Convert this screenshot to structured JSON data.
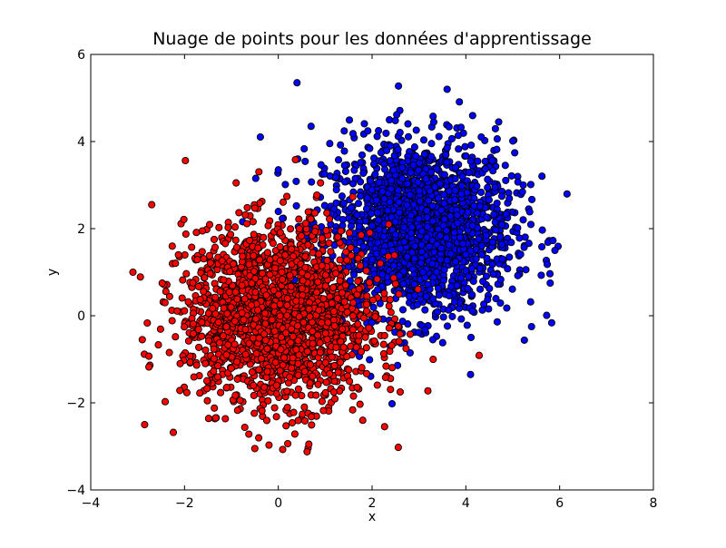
{
  "chart_data": {
    "type": "scatter",
    "title": "Nuage de points pour les données d'apprentissage",
    "xlabel": "x",
    "ylabel": "y",
    "xlim": [
      -4,
      8
    ],
    "ylim": [
      -4,
      6
    ],
    "x_ticks": [
      "−4",
      "−2",
      "0",
      "2",
      "4",
      "6",
      "8"
    ],
    "y_ticks": [
      "−4",
      "−2",
      "0",
      "2",
      "4",
      "6"
    ],
    "grid": false,
    "series": [
      {
        "color": "#ff0000",
        "distribution": {
          "mean": [
            0,
            0
          ],
          "std": [
            1,
            1
          ],
          "count": 2000
        },
        "outliers": [
          [
            -2.7,
            2.55
          ],
          [
            -3.1,
            1.0
          ],
          [
            -2.9,
            -0.55
          ],
          [
            -2.85,
            -2.5
          ],
          [
            -0.5,
            -3.05
          ],
          [
            0.65,
            -2.95
          ],
          [
            1.8,
            -2.4
          ],
          [
            0.9,
            3.05
          ],
          [
            -0.9,
            3.05
          ],
          [
            2.6,
            -1.75
          ]
        ]
      },
      {
        "color": "#0000ff",
        "distribution": {
          "mean": [
            3,
            2
          ],
          "std": [
            1,
            1
          ],
          "count": 2000
        },
        "outliers": [
          [
            0.4,
            5.35
          ],
          [
            3.6,
            5.2
          ],
          [
            4.7,
            4.45
          ],
          [
            5.9,
            1.5
          ],
          [
            5.8,
            0.75
          ],
          [
            5.4,
            -0.25
          ],
          [
            4.1,
            -1.35
          ],
          [
            0.7,
            4.35
          ],
          [
            0.0,
            3.35
          ],
          [
            1.2,
            0.1
          ]
        ]
      }
    ]
  }
}
